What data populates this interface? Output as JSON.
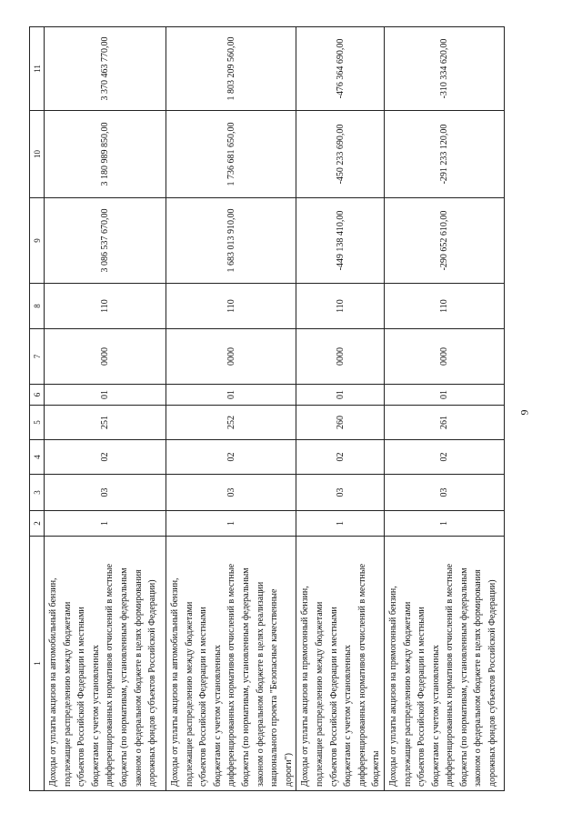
{
  "page_number": "9",
  "table": {
    "column_numbers": [
      "1",
      "2",
      "3",
      "4",
      "5",
      "6",
      "7",
      "8",
      "9",
      "10",
      "11"
    ],
    "rows": [
      {
        "description_lines": [
          "Доходы от уплаты акцизов на автомобильный бензин,",
          "подлежащие распределению между бюджетами",
          "субъектов Российской Федерации и местными",
          "бюджетами с учетом установленных",
          "дифференцированных нормативов отчислений в местные",
          "бюджеты (по нормативам, установленным федеральным",
          "законом о федеральном бюджете в целях формирования",
          "дорожных фондов субъектов Российской Федерации)"
        ],
        "cells": [
          "1",
          "03",
          "02",
          "251",
          "01",
          "0000",
          "110",
          "3 086 537 670,00",
          "3 180 989 850,00",
          "3 370 463 770,00"
        ]
      },
      {
        "description_lines": [
          "Доходы от уплаты акцизов на автомобильный бензин,",
          "подлежащие распределению между бюджетами",
          "субъектов Российской Федерации и местными",
          "бюджетами с учетом установленных",
          "дифференцированных нормативов отчислений в местные",
          "бюджеты (по нормативам, установленным федеральным",
          "законом о федеральном бюджете в целях реализации",
          "национального проекта \"Безопасные качественные",
          "дороги\")"
        ],
        "cells": [
          "1",
          "03",
          "02",
          "252",
          "01",
          "0000",
          "110",
          "1 683 013 910,00",
          "1 736 681 650,00",
          "1 803 209 560,00"
        ]
      },
      {
        "description_lines": [
          "Доходы от уплаты акцизов на прямогонный бензин,",
          "подлежащие распределению между бюджетами",
          "субъектов Российской Федерации и местными",
          "бюджетами с учетом установленных",
          "дифференцированных нормативов отчислений в местные",
          "бюджеты"
        ],
        "cells": [
          "1",
          "03",
          "02",
          "260",
          "01",
          "0000",
          "110",
          "-449 138 410,00",
          "-450 233 690,00",
          "-476 364 690,00"
        ]
      },
      {
        "description_lines": [
          "Доходы от уплаты акцизов на прямогонный бензин,",
          "подлежащие распределению между бюджетами",
          "субъектов Российской Федерации и местными",
          "бюджетами с учетом установленных",
          "дифференцированных нормативов отчислений в местные",
          "бюджеты (по нормативам, установленным федеральным",
          "законом о федеральном бюджете в целях формирования",
          "дорожных фондов субъектов Российской Федерации)"
        ],
        "cells": [
          "1",
          "03",
          "02",
          "261",
          "01",
          "0000",
          "110",
          "-290 652 610,00",
          "-291 233 120,00",
          "-310 334 620,00"
        ]
      }
    ]
  }
}
